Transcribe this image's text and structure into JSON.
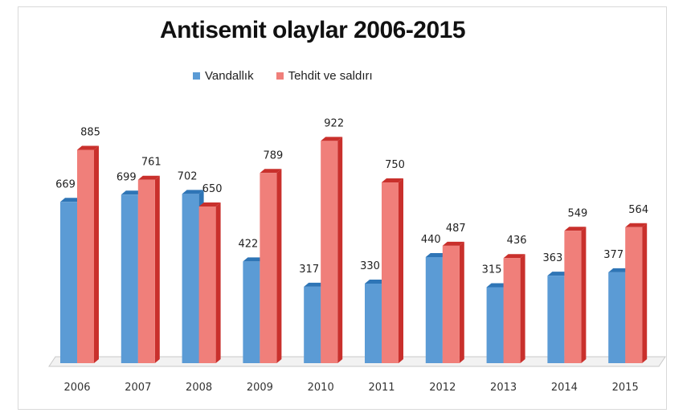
{
  "chart_data": {
    "type": "bar",
    "title": "Antisemit olaylar 2006-2015",
    "categories": [
      "2006",
      "2007",
      "2008",
      "2009",
      "2010",
      "2011",
      "2012",
      "2013",
      "2014",
      "2015"
    ],
    "series": [
      {
        "name": "Vandallık",
        "color": "#5b9bd5",
        "values": [
          669,
          699,
          702,
          422,
          317,
          330,
          440,
          315,
          363,
          377
        ]
      },
      {
        "name": "Tehdit ve saldırı",
        "color": "#f07f7a",
        "values": [
          885,
          761,
          650,
          789,
          922,
          750,
          487,
          436,
          549,
          564
        ]
      }
    ],
    "ylim": [
      0,
      1000
    ],
    "grid": false,
    "legend_position": "top"
  }
}
